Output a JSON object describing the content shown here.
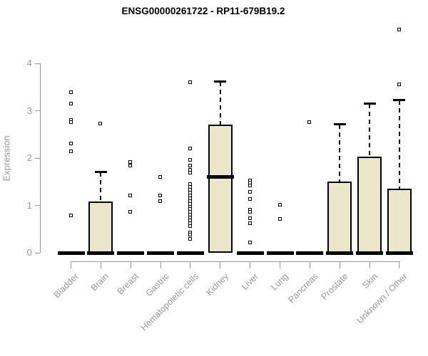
{
  "title": "ENSG00000261722 - RP11-679B19.2",
  "chart_data": {
    "type": "boxplot",
    "title": "ENSG00000261722 - RP11-679B19.2",
    "xlabel": "",
    "ylabel": "Expression",
    "ylim": [
      0,
      4.75
    ],
    "yticks": [
      0,
      1,
      2,
      3,
      4
    ],
    "grid": false,
    "categories": [
      "Bladder",
      "Brain",
      "Breast",
      "Gastric",
      "Hematopoietic cells",
      "Kidney",
      "Liver",
      "Lung",
      "Pancreas",
      "Prostate",
      "Skin",
      "Unknown / Other"
    ],
    "series": [
      {
        "category": "Bladder",
        "q1": 0,
        "median": 0,
        "q3": 0,
        "whisker_low": 0,
        "whisker_high": 0,
        "outliers": [
          3.38,
          3.14,
          2.8,
          2.75,
          2.3,
          2.14,
          0.78
        ]
      },
      {
        "category": "Brain",
        "q1": 0,
        "median": 0,
        "q3": 1.08,
        "whisker_low": 0,
        "whisker_high": 1.71,
        "outliers": [
          2.72
        ]
      },
      {
        "category": "Breast",
        "q1": 0,
        "median": 0,
        "q3": 0,
        "whisker_low": 0,
        "whisker_high": 0,
        "outliers": [
          1.91,
          1.84,
          1.2,
          0.85
        ]
      },
      {
        "category": "Gastric",
        "q1": 0,
        "median": 0,
        "q3": 0,
        "whisker_low": 0,
        "whisker_high": 0,
        "outliers": [
          1.6,
          1.21,
          1.08
        ]
      },
      {
        "category": "Hematopoietic cells",
        "q1": 0,
        "median": 0,
        "q3": 0,
        "whisker_low": 0,
        "whisker_high": 0,
        "outliers": [
          3.59,
          2.2,
          1.96,
          1.84,
          1.74,
          1.69,
          1.44,
          1.38,
          1.32,
          1.26,
          1.2,
          1.14,
          1.08,
          1.02,
          0.96,
          0.92,
          0.86,
          0.8,
          0.74,
          0.68,
          0.62,
          0.56,
          0.42,
          0.38,
          0.28
        ]
      },
      {
        "category": "Kidney",
        "q1": 0,
        "median": 1.6,
        "q3": 2.7,
        "whisker_low": 0,
        "whisker_high": 3.62,
        "outliers": []
      },
      {
        "category": "Liver",
        "q1": 0,
        "median": 0,
        "q3": 0,
        "whisker_low": 0,
        "whisker_high": 0,
        "outliers": [
          1.52,
          1.47,
          1.42,
          1.28,
          1.13,
          0.9,
          0.85,
          0.72,
          0.61,
          0.21
        ]
      },
      {
        "category": "Lung",
        "q1": 0,
        "median": 0,
        "q3": 0,
        "whisker_low": 0,
        "whisker_high": 0,
        "outliers": [
          1.01,
          0.71
        ]
      },
      {
        "category": "Pancreas",
        "q1": 0,
        "median": 0,
        "q3": 0,
        "whisker_low": 0,
        "whisker_high": 0,
        "outliers": [
          2.75
        ]
      },
      {
        "category": "Prostate",
        "q1": 0,
        "median": 0,
        "q3": 1.5,
        "whisker_low": 0,
        "whisker_high": 2.72,
        "outliers": []
      },
      {
        "category": "Skin",
        "q1": 0,
        "median": 0,
        "q3": 2.03,
        "whisker_low": 0,
        "whisker_high": 3.16,
        "outliers": []
      },
      {
        "category": "Unknown / Other",
        "q1": 0,
        "median": 0,
        "q3": 1.35,
        "whisker_low": 0,
        "whisker_high": 3.23,
        "outliers": [
          4.7,
          3.55
        ]
      }
    ],
    "colors": {
      "box_fill": "#EBE6C9",
      "box_stroke": "#000000",
      "median": "#000000",
      "whisker": "#000000",
      "outlier_stroke": "#000000",
      "outlier_fill": "#ffffff",
      "axis": "#999999",
      "tick_label": "#999999",
      "title": "#000000"
    }
  }
}
